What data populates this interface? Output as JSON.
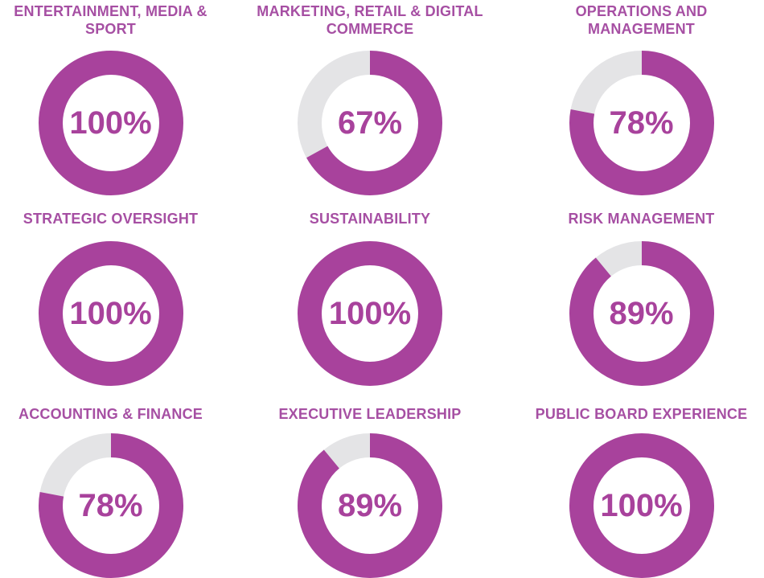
{
  "colors": {
    "accent": "#a8429c",
    "track": "#e4e4e6",
    "title": "#a64fa3"
  },
  "chart_data": {
    "type": "pie",
    "variant": "donut-grid",
    "unit": "%",
    "legend": false,
    "grid": false,
    "categories": [
      "ENTERTAINMENT, MEDIA & SPORT",
      "MARKETING, RETAIL & DIGITAL COMMERCE",
      "OPERATIONS AND MANAGEMENT",
      "STRATEGIC OVERSIGHT",
      "SUSTAINABILITY",
      "RISK MANAGEMENT",
      "ACCOUNTING & FINANCE",
      "EXECUTIVE LEADERSHIP",
      "PUBLIC BOARD EXPERIENCE"
    ],
    "values": [
      100,
      67,
      78,
      100,
      100,
      89,
      78,
      89,
      100
    ],
    "charts": [
      {
        "title": "ENTERTAINMENT, MEDIA &\nSPORT",
        "value": 100,
        "label": "100%"
      },
      {
        "title": "MARKETING, RETAIL & DIGITAL\nCOMMERCE",
        "value": 67,
        "label": "67%"
      },
      {
        "title": "OPERATIONS AND\nMANAGEMENT",
        "value": 78,
        "label": "78%"
      },
      {
        "title": "STRATEGIC OVERSIGHT",
        "value": 100,
        "label": "100%"
      },
      {
        "title": "SUSTAINABILITY",
        "value": 100,
        "label": "100%"
      },
      {
        "title": "RISK MANAGEMENT",
        "value": 89,
        "label": "89%"
      },
      {
        "title": "ACCOUNTING & FINANCE",
        "value": 78,
        "label": "78%"
      },
      {
        "title": "EXECUTIVE LEADERSHIP",
        "value": 89,
        "label": "89%"
      },
      {
        "title": "PUBLIC BOARD EXPERIENCE",
        "value": 100,
        "label": "100%"
      }
    ]
  }
}
